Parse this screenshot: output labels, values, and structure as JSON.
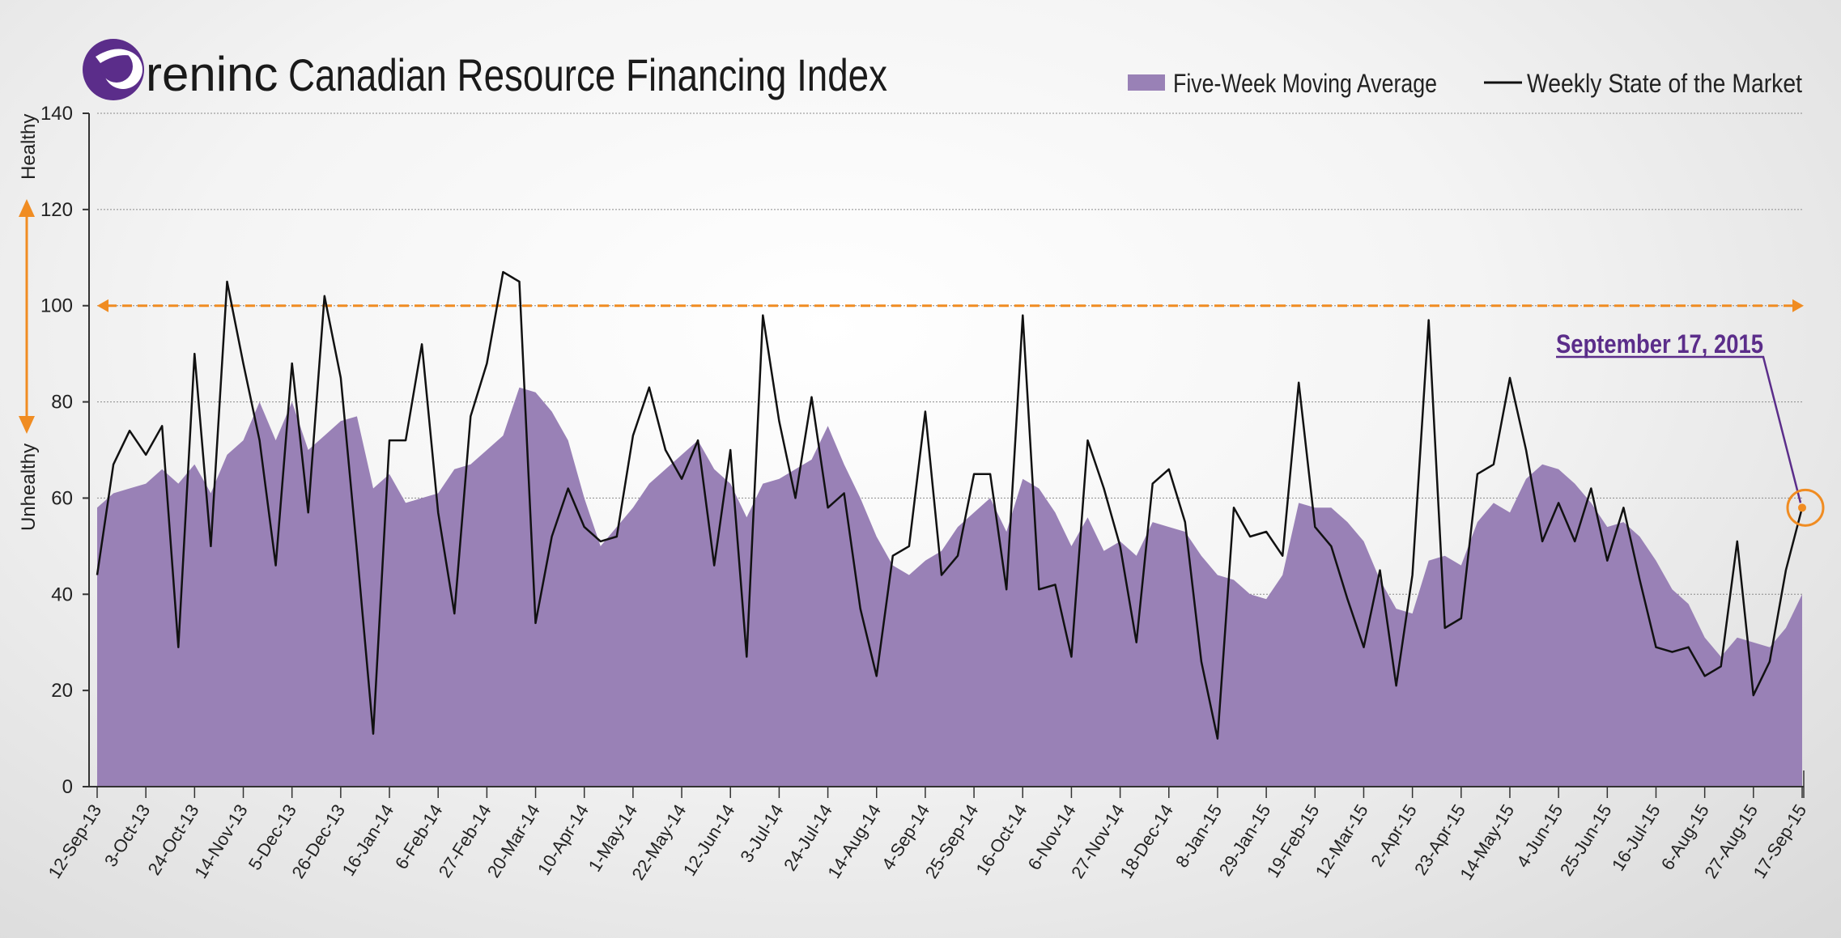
{
  "header": {
    "brand": "reninc",
    "title": "Canadian Resource Financing Index"
  },
  "legend": {
    "area_label": "Five-Week Moving Average",
    "line_label": "Weekly State of the Market"
  },
  "side_labels": {
    "top": "Healthy",
    "bottom": "Unhealthy"
  },
  "annotation": {
    "text": "September 17, 2015"
  },
  "colors": {
    "area": "#9981b6",
    "line": "#111111",
    "threshold": "#f08c22",
    "annotation": "#5b2d8a",
    "brand": "#5b2d8a"
  },
  "chart_data": {
    "type": "line",
    "ylim": [
      0,
      140
    ],
    "yticks": [
      0,
      20,
      40,
      60,
      80,
      100,
      120,
      140
    ],
    "threshold": 100,
    "x_tick_labels": [
      "12-Sep-13",
      "3-Oct-13",
      "24-Oct-13",
      "14-Nov-13",
      "5-Dec-13",
      "26-Dec-13",
      "16-Jan-14",
      "6-Feb-14",
      "27-Feb-14",
      "20-Mar-14",
      "10-Apr-14",
      "1-May-14",
      "22-May-14",
      "12-Jun-14",
      "3-Jul-14",
      "24-Jul-14",
      "14-Aug-14",
      "4-Sep-14",
      "25-Sep-14",
      "16-Oct-14",
      "6-Nov-14",
      "27-Nov-14",
      "18-Dec-14",
      "8-Jan-15",
      "29-Jan-15",
      "19-Feb-15",
      "12-Mar-15",
      "2-Apr-15",
      "23-Apr-15",
      "14-May-15",
      "4-Jun-15",
      "25-Jun-15",
      "16-Jul-15",
      "6-Aug-15",
      "27-Aug-15",
      "17-Sep-15"
    ],
    "series": [
      {
        "name": "Weekly State of the Market",
        "type": "line",
        "values": [
          44,
          67,
          74,
          69,
          75,
          29,
          90,
          50,
          105,
          88,
          72,
          46,
          88,
          57,
          102,
          85,
          49,
          11,
          72,
          72,
          92,
          57,
          36,
          77,
          88,
          107,
          105,
          34,
          52,
          62,
          54,
          51,
          52,
          73,
          83,
          70,
          64,
          72,
          46,
          70,
          27,
          98,
          76,
          60,
          81,
          58,
          61,
          37,
          23,
          48,
          50,
          78,
          44,
          48,
          65,
          65,
          41,
          98,
          41,
          42,
          27,
          72,
          62,
          50,
          30,
          63,
          66,
          55,
          26,
          10,
          58,
          52,
          53,
          48,
          84,
          54,
          50,
          39,
          29,
          45,
          21,
          44,
          97,
          33,
          35,
          65,
          67,
          85,
          70,
          51,
          59,
          51,
          62,
          47,
          58,
          43,
          29,
          28,
          29,
          23,
          25,
          51,
          19,
          26,
          45,
          58
        ]
      },
      {
        "name": "Five-Week Moving Average",
        "type": "area",
        "values": [
          58,
          61,
          62,
          63,
          66,
          63,
          67,
          61,
          69,
          72,
          80,
          72,
          80,
          70,
          73,
          76,
          77,
          62,
          65,
          59,
          60,
          61,
          66,
          67,
          70,
          73,
          83,
          82,
          78,
          72,
          60,
          50,
          54,
          58,
          63,
          66,
          69,
          72,
          66,
          63,
          56,
          63,
          64,
          66,
          68,
          75,
          67,
          60,
          52,
          46,
          44,
          47,
          49,
          54,
          57,
          60,
          53,
          64,
          62,
          57,
          50,
          56,
          49,
          51,
          48,
          55,
          54,
          53,
          48,
          44,
          43,
          40,
          39,
          44,
          59,
          58,
          58,
          55,
          51,
          43,
          37,
          36,
          47,
          48,
          46,
          55,
          59,
          57,
          64,
          67,
          66,
          63,
          59,
          54,
          55,
          52,
          47,
          41,
          38,
          31,
          27,
          31,
          30,
          29,
          33,
          40
        ]
      }
    ]
  }
}
